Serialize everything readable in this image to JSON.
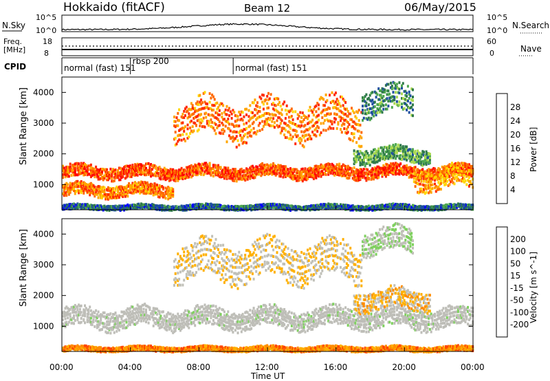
{
  "header": {
    "station": "Hokkaido (fitACF)",
    "beam": "Beam 12",
    "date": "06/May/2015"
  },
  "top_strip": {
    "nsky_label": "N.Sky",
    "nsky_ticks": [
      "10^5",
      "10^0"
    ],
    "nsearch_label": "N.Search",
    "nsearch_ticks": [
      "10^5",
      "10^0"
    ],
    "freq_label_1": "Freq.",
    "freq_label_2": "[MHz]",
    "freq_ticks": [
      "18",
      "8"
    ],
    "nave_label": "Nave",
    "nave_ticks": [
      "60",
      "0"
    ],
    "cpid_label": "CPID",
    "cpid_segments": [
      {
        "label": "normal (fast) 151",
        "start_hour": 0,
        "end_hour": 4
      },
      {
        "label": "rbsp 200",
        "start_hour": 4,
        "end_hour": 10
      },
      {
        "label": "normal (fast) 151",
        "start_hour": 10,
        "end_hour": 24
      }
    ]
  },
  "x_axis": {
    "label": "Time UT",
    "ticks": [
      "00:00",
      "04:00",
      "08:00",
      "12:00",
      "16:00",
      "20:00",
      "00:00"
    ]
  },
  "colors": {
    "power_scale": [
      "#0000ff",
      "#1f4fa0",
      "#2f7a4a",
      "#4fa84f",
      "#a8d84f",
      "#ffd700",
      "#ffa500",
      "#ff6a00",
      "#ff2a00",
      "#ff0000"
    ],
    "velocity_scale": [
      "#ff0000",
      "#ff4500",
      "#ff8c00",
      "#ffb000",
      "#c0c0b8",
      "#c0c0b8",
      "#7fd05f",
      "#3c8f3c",
      "#2a5a7a",
      "#1a2a9a"
    ],
    "velocity_ground": "#bebeb8"
  },
  "chart_data": [
    {
      "type": "heatmap",
      "panel": "power",
      "title": "",
      "xlabel": "",
      "ylabel": "Slant Range [km]",
      "yticks": [
        "1000",
        "2000",
        "3000",
        "4000"
      ],
      "xlim": [
        0,
        24
      ],
      "ylim": [
        180,
        4500
      ],
      "colorbar_label": "Power [dB]",
      "colorbar_ticks": [
        "28",
        "24",
        "20",
        "16",
        "12",
        "8",
        "4"
      ],
      "colorbar_range": [
        0,
        30
      ],
      "echo_bands": [
        {
          "name": "main E/F band",
          "start_hour": 0.0,
          "end_hour": 24.0,
          "range_km": [
            1200,
            1700
          ],
          "power_db": 24
        },
        {
          "name": "near range",
          "start_hour": 0.0,
          "end_hour": 6.5,
          "range_km": [
            600,
            1100
          ],
          "power_db": 22
        },
        {
          "name": "upper band",
          "start_hour": 6.5,
          "end_hour": 17.5,
          "range_km": [
            2400,
            3900
          ],
          "power_db": 22
        },
        {
          "name": "morning patch",
          "start_hour": 17.0,
          "end_hour": 21.5,
          "range_km": [
            1700,
            2300
          ],
          "power_db": 10
        },
        {
          "name": "high patch",
          "start_hour": 17.5,
          "end_hour": 20.5,
          "range_km": [
            3200,
            4300
          ],
          "power_db": 8
        },
        {
          "name": "evening band",
          "start_hour": 20.5,
          "end_hour": 24.0,
          "range_km": [
            800,
            1700
          ],
          "power_db": 20
        },
        {
          "name": "ground clutter",
          "start_hour": 0.0,
          "end_hour": 24.0,
          "range_km": [
            200,
            400
          ],
          "power_db": 6
        }
      ]
    },
    {
      "type": "heatmap",
      "panel": "velocity",
      "title": "",
      "xlabel": "Time UT",
      "ylabel": "Slant Range [km]",
      "yticks": [
        "1000",
        "2000",
        "3000",
        "4000"
      ],
      "xlim": [
        0,
        24
      ],
      "ylim": [
        180,
        4500
      ],
      "colorbar_label": "Velocity [m s^-1]",
      "colorbar_ticks": [
        "200",
        "100",
        "50",
        "15",
        "-15",
        "-50",
        "-100",
        "-200"
      ],
      "colorbar_range": [
        -250,
        250
      ],
      "echo_bands": [
        {
          "name": "main band",
          "start_hour": 0.0,
          "end_hour": 24.0,
          "range_km": [
            900,
            1700
          ],
          "velocity": 0
        },
        {
          "name": "upper band",
          "start_hour": 6.5,
          "end_hour": 17.5,
          "range_km": [
            2400,
            3900
          ],
          "velocity": -40
        },
        {
          "name": "morning patch",
          "start_hour": 17.0,
          "end_hour": 21.5,
          "range_km": [
            1500,
            2300
          ],
          "velocity": -60
        },
        {
          "name": "high patch",
          "start_hour": 17.5,
          "end_hour": 20.5,
          "range_km": [
            3300,
            4300
          ],
          "velocity": 40
        },
        {
          "name": "ground clutter",
          "start_hour": 0.0,
          "end_hour": 24.0,
          "range_km": [
            200,
            400
          ],
          "velocity": -120
        }
      ]
    }
  ]
}
